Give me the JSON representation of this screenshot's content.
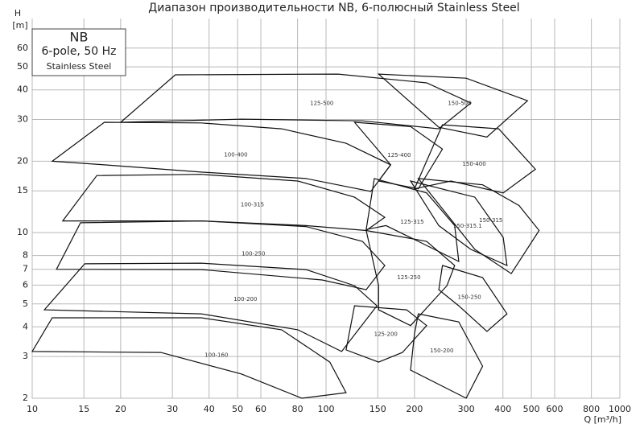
{
  "chart_data": {
    "type": "region",
    "title": "Диапазон производительности NB, 6-полюсный Stainless Steel",
    "y_label": "H",
    "y_unit": "[m]",
    "x_label": "Q [m³/h]",
    "legend": {
      "title": "NB",
      "subtitle": "6-pole, 50 Hz",
      "note": "Stainless Steel"
    },
    "log_x": true,
    "log_y": true,
    "grid": true,
    "color": "#111111",
    "xlim": [
      10,
      1000
    ],
    "ylim": [
      2,
      80
    ],
    "xticks": [
      10,
      15,
      20,
      30,
      40,
      50,
      60,
      80,
      100,
      150,
      200,
      300,
      400,
      500,
      600,
      800,
      1000
    ],
    "yticks": [
      2,
      3,
      4,
      5,
      6,
      7,
      8,
      10,
      15,
      20,
      30,
      40,
      50,
      60
    ],
    "regions": [
      {
        "name": "100-400",
        "q": [
          11.7,
          17.6,
          37.6,
          70.6,
          117,
          166,
          142,
          85.5,
          37.6,
          17.6
        ],
        "h": [
          20,
          29.2,
          29.0,
          27.4,
          23.8,
          19.3,
          14.9,
          16.9,
          18.0,
          19.3
        ]
      },
      {
        "name": "100-315",
        "q": [
          12.7,
          16.6,
          37.6,
          80.2,
          125,
          158.5,
          137,
          85.5,
          37.6
        ],
        "h": [
          11.2,
          17.4,
          17.6,
          16.5,
          14.1,
          11.6,
          10.2,
          10.7,
          11.2
        ]
      },
      {
        "name": "100-250",
        "q": [
          12.1,
          14.6,
          37.6,
          85.5,
          133,
          158.5,
          137,
          97,
          37.6
        ],
        "h": [
          7.0,
          11.0,
          11.2,
          10.6,
          9.18,
          7.26,
          5.74,
          6.31,
          6.98
        ]
      },
      {
        "name": "100-200",
        "q": [
          11.0,
          15.1,
          37.6,
          85.5,
          125,
          149,
          113,
          80.2,
          37.6
        ],
        "h": [
          4.72,
          7.38,
          7.43,
          6.98,
          5.97,
          4.91,
          3.15,
          3.89,
          4.54
        ]
      },
      {
        "name": "100-160",
        "q": [
          10,
          11.7,
          37.6,
          70.6,
          103,
          117,
          82.8,
          51.6,
          27.4
        ],
        "h": [
          3.15,
          4.37,
          4.37,
          3.89,
          2.84,
          2.11,
          2,
          2.53,
          3.12
        ]
      },
      {
        "name": "125-500",
        "q": [
          20,
          30.7,
          110,
          220,
          311,
          242,
          133,
          51.6
        ],
        "h": [
          29.2,
          46.3,
          46.6,
          42.8,
          35.2,
          27.4,
          29.6,
          30.1
        ]
      },
      {
        "name": "150-500",
        "q": [
          151,
          300,
          485,
          353,
          242
        ],
        "h": [
          46.6,
          44.8,
          36.0,
          25.3,
          27.8
        ]
      },
      {
        "name": "125-400",
        "q": [
          125,
          194,
          249,
          206,
          151,
          166
        ],
        "h": [
          29.2,
          28.0,
          22.5,
          15.3,
          16.5,
          19.3
        ]
      },
      {
        "name": "150-400",
        "q": [
          249,
          387,
          516,
          401,
          266,
          200
        ],
        "h": [
          28.5,
          27.4,
          18.5,
          14.7,
          16.5,
          15.3
        ]
      },
      {
        "name": "125-315",
        "q": [
          146,
          220,
          274,
          283,
          206,
          160,
          137
        ],
        "h": [
          16.9,
          14.7,
          10.7,
          7.55,
          9.18,
          10.7,
          10.3
        ]
      },
      {
        "name": "150-315.1",
        "q": [
          194,
          321,
          401,
          413,
          311,
          242
        ],
        "h": [
          16.5,
          14.1,
          9.54,
          7.26,
          8.49,
          10.7
        ]
      },
      {
        "name": "150-315",
        "q": [
          206,
          341,
          454,
          531,
          427,
          321
        ],
        "h": [
          16.9,
          15.9,
          13.0,
          10.2,
          6.71,
          8.49
        ]
      },
      {
        "name": "125-250",
        "q": [
          137,
          220,
          274,
          258,
          194,
          151,
          151
        ],
        "h": [
          10.2,
          9.18,
          7.26,
          5.97,
          4.05,
          4.72,
          5.97
        ]
      },
      {
        "name": "150-250",
        "q": [
          249,
          341,
          413,
          353,
          283,
          242
        ],
        "h": [
          7.26,
          6.46,
          4.54,
          3.83,
          4.91,
          5.74
        ]
      },
      {
        "name": "125-200",
        "q": [
          125,
          188,
          220,
          182,
          151,
          117
        ],
        "h": [
          4.91,
          4.72,
          4.05,
          3.12,
          2.84,
          3.2
        ]
      },
      {
        "name": "150-200",
        "q": [
          206,
          283,
          341,
          300,
          194,
          200
        ],
        "h": [
          4.54,
          4.2,
          2.73,
          2,
          2.63,
          3.74
        ]
      }
    ]
  }
}
